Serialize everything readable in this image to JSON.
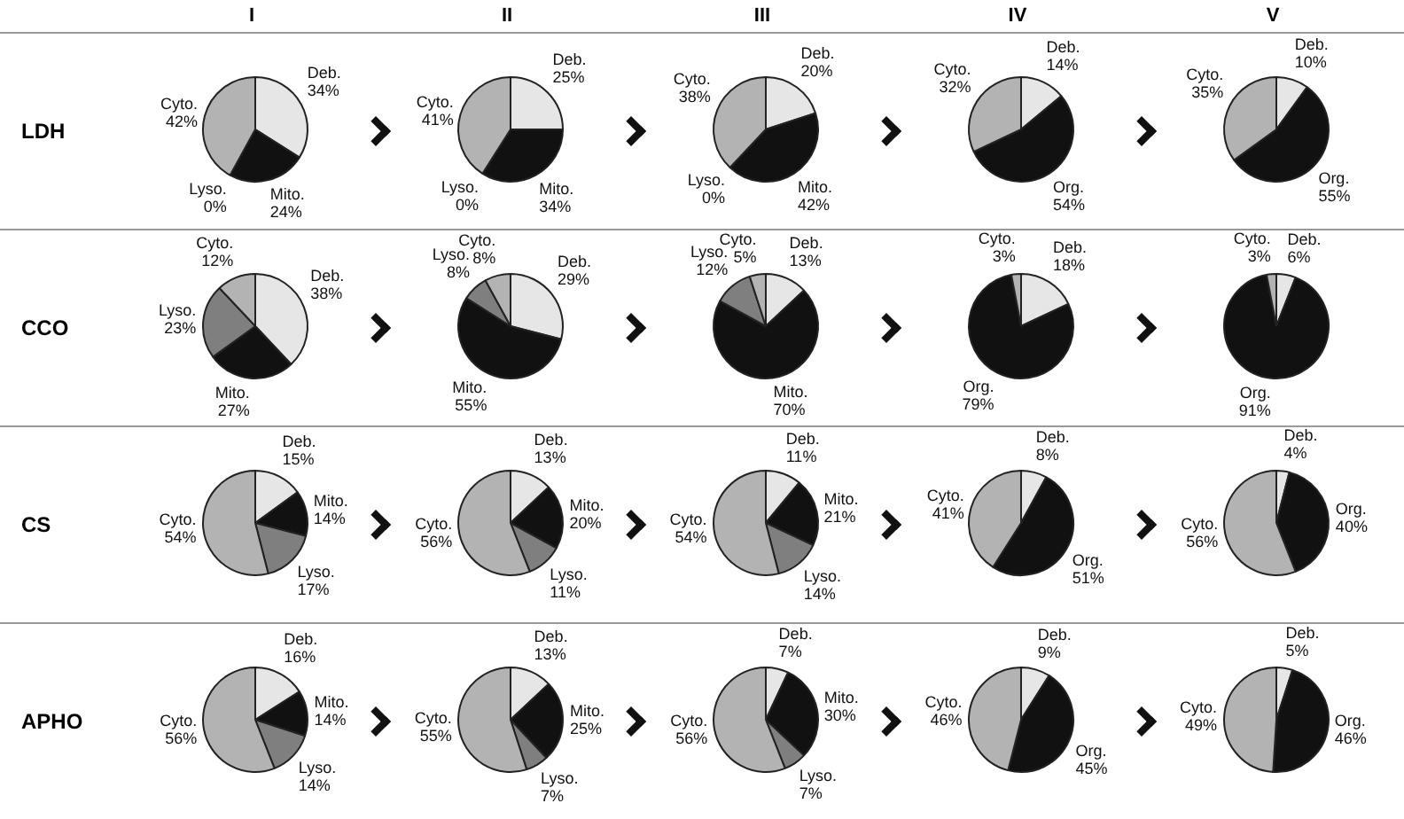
{
  "chart_data": [
    {
      "type": "pie",
      "title": "I",
      "ylabel": "LDH",
      "categories": [
        "Deb.",
        "Mito.",
        "Lyso.",
        "Cyto."
      ],
      "values": [
        34,
        24,
        0,
        42
      ],
      "value_labels": [
        "34%",
        "24%",
        "0%",
        "42%"
      ],
      "colors": [
        "#e6e6e6",
        "#111111",
        "#7f7f7f",
        "#b3b3b3"
      ]
    },
    {
      "type": "pie",
      "title": "II",
      "categories": [
        "Deb.",
        "Mito.",
        "Lyso.",
        "Cyto."
      ],
      "values": [
        25,
        34,
        0,
        41
      ],
      "value_labels": [
        "25%",
        "34%",
        "0%",
        "41%"
      ],
      "colors": [
        "#e6e6e6",
        "#111111",
        "#7f7f7f",
        "#b3b3b3"
      ]
    },
    {
      "type": "pie",
      "title": "III",
      "categories": [
        "Deb.",
        "Mito.",
        "Lyso.",
        "Cyto."
      ],
      "values": [
        20,
        42,
        0,
        38
      ],
      "value_labels": [
        "20%",
        "42%",
        "0%",
        "38%"
      ],
      "colors": [
        "#e6e6e6",
        "#111111",
        "#7f7f7f",
        "#b3b3b3"
      ]
    },
    {
      "type": "pie",
      "title": "IV",
      "categories": [
        "Deb.",
        "Org.",
        "Cyto."
      ],
      "values": [
        14,
        54,
        32
      ],
      "value_labels": [
        "14%",
        "54%",
        "32%"
      ],
      "colors": [
        "#e6e6e6",
        "#111111",
        "#b3b3b3"
      ]
    },
    {
      "type": "pie",
      "title": "V",
      "categories": [
        "Deb.",
        "Org.",
        "Cyto."
      ],
      "values": [
        10,
        55,
        35
      ],
      "value_labels": [
        "10%",
        "55%",
        "35%"
      ],
      "colors": [
        "#e6e6e6",
        "#111111",
        "#b3b3b3"
      ]
    },
    {
      "type": "pie",
      "ylabel": "CCO",
      "categories": [
        "Deb.",
        "Mito.",
        "Lyso.",
        "Cyto."
      ],
      "values": [
        38,
        27,
        23,
        12
      ],
      "value_labels": [
        "38%",
        "27%",
        "23%",
        "12%"
      ],
      "colors": [
        "#e6e6e6",
        "#111111",
        "#7f7f7f",
        "#b3b3b3"
      ]
    },
    {
      "type": "pie",
      "categories": [
        "Deb.",
        "Mito.",
        "Lyso.",
        "Cyto."
      ],
      "values": [
        29,
        55,
        8,
        8
      ],
      "value_labels": [
        "29%",
        "55%",
        "8%",
        "8%"
      ],
      "colors": [
        "#e6e6e6",
        "#111111",
        "#7f7f7f",
        "#b3b3b3"
      ]
    },
    {
      "type": "pie",
      "categories": [
        "Deb.",
        "Mito.",
        "Lyso.",
        "Cyto."
      ],
      "values": [
        13,
        70,
        12,
        5
      ],
      "value_labels": [
        "13%",
        "70%",
        "12%",
        "5%"
      ],
      "colors": [
        "#e6e6e6",
        "#111111",
        "#7f7f7f",
        "#b3b3b3"
      ]
    },
    {
      "type": "pie",
      "categories": [
        "Deb.",
        "Org.",
        "Cyto."
      ],
      "values": [
        18,
        79,
        3
      ],
      "value_labels": [
        "18%",
        "79%",
        "3%"
      ],
      "colors": [
        "#e6e6e6",
        "#111111",
        "#b3b3b3"
      ]
    },
    {
      "type": "pie",
      "categories": [
        "Deb.",
        "Org.",
        "Cyto."
      ],
      "values": [
        6,
        91,
        3
      ],
      "value_labels": [
        "6%",
        "91%",
        "3%"
      ],
      "colors": [
        "#e6e6e6",
        "#111111",
        "#b3b3b3"
      ]
    },
    {
      "type": "pie",
      "ylabel": "CS",
      "categories": [
        "Deb.",
        "Mito.",
        "Lyso.",
        "Cyto."
      ],
      "values": [
        15,
        14,
        17,
        54
      ],
      "value_labels": [
        "15%",
        "14%",
        "17%",
        "54%"
      ],
      "colors": [
        "#e6e6e6",
        "#111111",
        "#7f7f7f",
        "#b3b3b3"
      ]
    },
    {
      "type": "pie",
      "categories": [
        "Deb.",
        "Mito.",
        "Lyso.",
        "Cyto."
      ],
      "values": [
        13,
        20,
        11,
        56
      ],
      "value_labels": [
        "13%",
        "20%",
        "11%",
        "56%"
      ],
      "colors": [
        "#e6e6e6",
        "#111111",
        "#7f7f7f",
        "#b3b3b3"
      ]
    },
    {
      "type": "pie",
      "categories": [
        "Deb.",
        "Mito.",
        "Lyso.",
        "Cyto."
      ],
      "values": [
        11,
        21,
        14,
        54
      ],
      "value_labels": [
        "11%",
        "21%",
        "14%",
        "54%"
      ],
      "colors": [
        "#e6e6e6",
        "#111111",
        "#7f7f7f",
        "#b3b3b3"
      ]
    },
    {
      "type": "pie",
      "categories": [
        "Deb.",
        "Org.",
        "Cyto."
      ],
      "values": [
        8,
        51,
        41
      ],
      "value_labels": [
        "8%",
        "51%",
        "41%"
      ],
      "colors": [
        "#e6e6e6",
        "#111111",
        "#b3b3b3"
      ]
    },
    {
      "type": "pie",
      "categories": [
        "Deb.",
        "Org.",
        "Cyto."
      ],
      "values": [
        4,
        40,
        56
      ],
      "value_labels": [
        "4%",
        "40%",
        "56%"
      ],
      "colors": [
        "#e6e6e6",
        "#111111",
        "#b3b3b3"
      ]
    },
    {
      "type": "pie",
      "ylabel": "APHO",
      "categories": [
        "Deb.",
        "Mito.",
        "Lyso.",
        "Cyto."
      ],
      "values": [
        16,
        14,
        14,
        56
      ],
      "value_labels": [
        "16%",
        "14%",
        "14%",
        "56%"
      ],
      "colors": [
        "#e6e6e6",
        "#111111",
        "#7f7f7f",
        "#b3b3b3"
      ]
    },
    {
      "type": "pie",
      "categories": [
        "Deb.",
        "Mito.",
        "Lyso.",
        "Cyto."
      ],
      "values": [
        13,
        25,
        7,
        55
      ],
      "value_labels": [
        "13%",
        "25%",
        "7%",
        "55%"
      ],
      "colors": [
        "#e6e6e6",
        "#111111",
        "#7f7f7f",
        "#b3b3b3"
      ]
    },
    {
      "type": "pie",
      "categories": [
        "Deb.",
        "Mito.",
        "Lyso.",
        "Cyto."
      ],
      "values": [
        7,
        30,
        7,
        56
      ],
      "value_labels": [
        "7%",
        "30%",
        "7%",
        "56%"
      ],
      "colors": [
        "#e6e6e6",
        "#111111",
        "#7f7f7f",
        "#b3b3b3"
      ]
    },
    {
      "type": "pie",
      "categories": [
        "Deb.",
        "Org.",
        "Cyto."
      ],
      "values": [
        9,
        45,
        46
      ],
      "value_labels": [
        "9%",
        "45%",
        "46%"
      ],
      "colors": [
        "#e6e6e6",
        "#111111",
        "#b3b3b3"
      ]
    },
    {
      "type": "pie",
      "categories": [
        "Deb.",
        "Org.",
        "Cyto."
      ],
      "values": [
        5,
        46,
        49
      ],
      "value_labels": [
        "5%",
        "46%",
        "49%"
      ],
      "colors": [
        "#e6e6e6",
        "#111111",
        "#b3b3b3"
      ]
    }
  ]
}
